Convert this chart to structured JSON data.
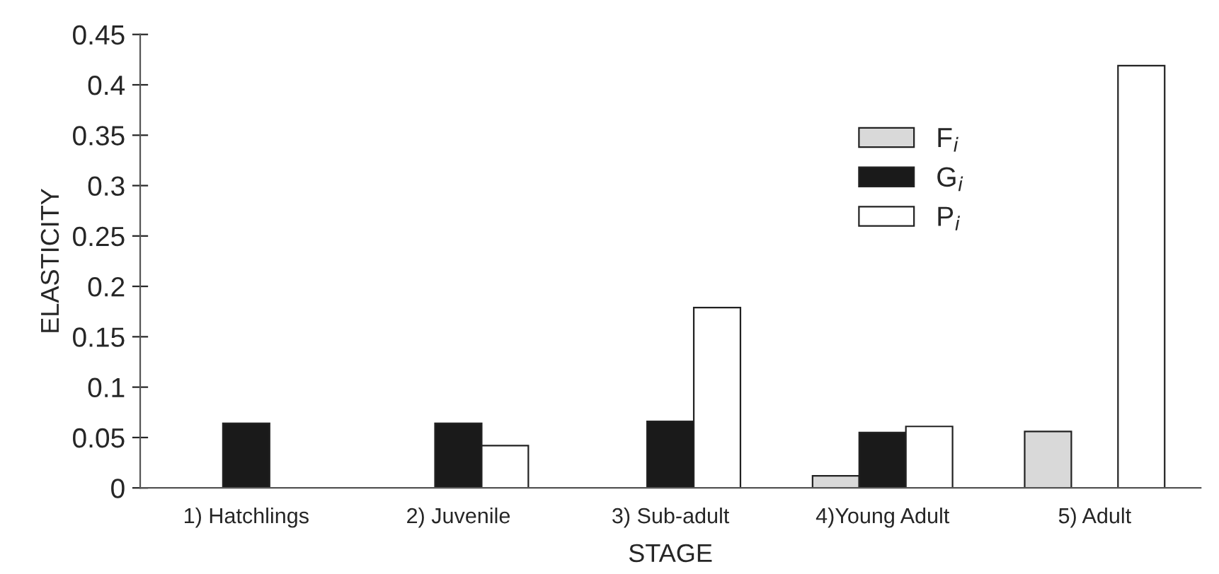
{
  "chart_data": {
    "type": "bar",
    "xlabel": "STAGE",
    "ylabel": "ELASTICITY",
    "categories": [
      "1) Hatchlings",
      "2) Juvenile",
      "3) Sub-adult",
      "4)Young Adult",
      "5) Adult"
    ],
    "series": [
      {
        "name": "F$_{i}$",
        "color": "#d9d9d9",
        "values": [
          null,
          null,
          null,
          0.012,
          0.056
        ]
      },
      {
        "name": "G$_{i}$",
        "color": "#1a1a1a",
        "values": [
          0.064,
          0.064,
          0.066,
          0.055,
          null
        ]
      },
      {
        "name": "P$_{i}$",
        "color": "#ffffff",
        "values": [
          null,
          0.042,
          0.179,
          0.061,
          0.419
        ]
      }
    ],
    "ylim": [
      0,
      0.45
    ],
    "yticks": [
      0,
      0.05,
      0.1,
      0.15,
      0.2,
      0.25,
      0.3,
      0.35,
      0.4,
      0.45
    ],
    "grid": false,
    "legend": "top right"
  }
}
